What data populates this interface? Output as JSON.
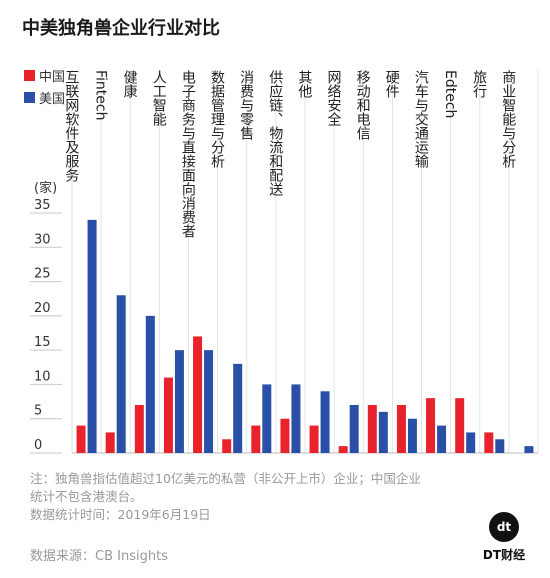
{
  "title": "中美独角兽企业行业对比",
  "chart_data": {
    "type": "bar",
    "orientation": "vertical",
    "categories": [
      "互联网软件及服务",
      "Fintech",
      "健康",
      "人工智能",
      "电子商务与直接面向消费者",
      "数据管理与分析",
      "消费与零售",
      "供应链、物流和配送",
      "其他",
      "网络安全",
      "移动和电信",
      "硬件",
      "汽车与交通运输",
      "Edtech",
      "旅行",
      "商业智能与分析"
    ],
    "series": [
      {
        "name": "中国",
        "color": "#e8232c",
        "values": [
          4,
          3,
          7,
          11,
          17,
          2,
          4,
          5,
          4,
          1,
          7,
          7,
          8,
          8,
          3,
          0
        ]
      },
      {
        "name": "美国",
        "color": "#2a4fa7",
        "values": [
          34,
          23,
          20,
          15,
          15,
          13,
          10,
          10,
          9,
          7,
          6,
          5,
          4,
          3,
          2,
          1
        ]
      }
    ],
    "ylabel": "(家)",
    "ylim": [
      0,
      35
    ],
    "yticks": [
      0,
      5,
      10,
      15,
      20,
      25,
      30,
      35
    ],
    "grid": false,
    "legend_position": "top-left"
  },
  "notes": {
    "line1": "注：独角兽指估值超过10亿美元的私营（非公开上市）企业；中国企业",
    "line2": "统计不包含港澳台。",
    "line3": "数据统计时间：2019年6月19日"
  },
  "source": "数据来源：CB Insights",
  "logo": {
    "mark": "dt",
    "text": "DT财经"
  }
}
